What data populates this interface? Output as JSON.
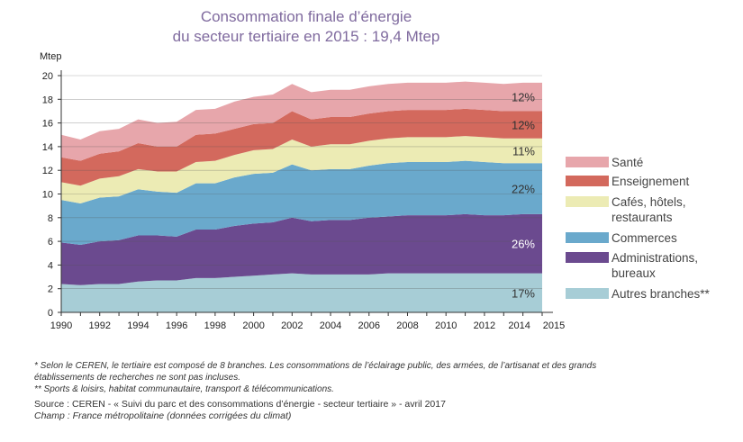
{
  "title_line1": "Consommation finale d’énergie",
  "title_line2": "du secteur tertiaire en 2015 : 19,4 Mtep",
  "chart_data": {
    "type": "area",
    "stacked": true,
    "ylabel": "Mtep",
    "ylim": [
      0,
      20
    ],
    "yticks": [
      0,
      2,
      4,
      6,
      8,
      10,
      12,
      14,
      16,
      18,
      20
    ],
    "xlim": [
      1990,
      2015
    ],
    "xticks": [
      1990,
      1992,
      1994,
      1996,
      1998,
      2000,
      2002,
      2004,
      2006,
      2008,
      2010,
      2012,
      2014,
      2015
    ],
    "grid": "horizontal",
    "x": [
      1990,
      1991,
      1992,
      1993,
      1994,
      1995,
      1996,
      1997,
      1998,
      1999,
      2000,
      2001,
      2002,
      2003,
      2004,
      2005,
      2006,
      2007,
      2008,
      2009,
      2010,
      2011,
      2012,
      2013,
      2014,
      2015
    ],
    "series": [
      {
        "name": "Autres branches**",
        "color": "#a7cdd6",
        "share_label": "17%",
        "values": [
          2.4,
          2.3,
          2.4,
          2.4,
          2.6,
          2.7,
          2.7,
          2.9,
          2.9,
          3.0,
          3.1,
          3.2,
          3.3,
          3.2,
          3.2,
          3.2,
          3.2,
          3.3,
          3.3,
          3.3,
          3.3,
          3.3,
          3.3,
          3.3,
          3.3,
          3.3
        ]
      },
      {
        "name": "Administrations, bureaux",
        "color": "#6b4a8f",
        "share_label": "26%",
        "values": [
          3.5,
          3.4,
          3.6,
          3.7,
          3.9,
          3.8,
          3.7,
          4.1,
          4.1,
          4.3,
          4.4,
          4.4,
          4.7,
          4.5,
          4.6,
          4.6,
          4.8,
          4.8,
          4.9,
          4.9,
          4.9,
          5.0,
          4.9,
          4.9,
          5.0,
          5.0
        ]
      },
      {
        "name": "Commerces",
        "color": "#6aa9cc",
        "share_label": "22%",
        "values": [
          3.6,
          3.5,
          3.7,
          3.7,
          3.9,
          3.7,
          3.7,
          3.9,
          3.9,
          4.1,
          4.2,
          4.2,
          4.5,
          4.3,
          4.3,
          4.3,
          4.4,
          4.5,
          4.5,
          4.5,
          4.5,
          4.5,
          4.5,
          4.4,
          4.3,
          4.3
        ]
      },
      {
        "name": "Cafés, hôtels, restaurants",
        "color": "#ecebb4",
        "share_label": "11%",
        "values": [
          1.5,
          1.5,
          1.6,
          1.7,
          1.7,
          1.7,
          1.8,
          1.8,
          1.9,
          1.9,
          2.0,
          2.0,
          2.1,
          2.0,
          2.1,
          2.1,
          2.1,
          2.1,
          2.1,
          2.1,
          2.1,
          2.1,
          2.1,
          2.1,
          2.1,
          2.1
        ]
      },
      {
        "name": "Enseignement",
        "color": "#d3695d",
        "share_label": "12%",
        "values": [
          2.1,
          2.1,
          2.1,
          2.1,
          2.2,
          2.1,
          2.1,
          2.3,
          2.3,
          2.2,
          2.2,
          2.2,
          2.4,
          2.3,
          2.3,
          2.3,
          2.3,
          2.3,
          2.3,
          2.3,
          2.3,
          2.3,
          2.3,
          2.3,
          2.3,
          2.3
        ]
      },
      {
        "name": "Santé",
        "color": "#e7a6ab",
        "share_label": "12%",
        "values": [
          1.9,
          1.8,
          1.9,
          1.9,
          2.0,
          2.0,
          2.1,
          2.1,
          2.1,
          2.3,
          2.3,
          2.4,
          2.3,
          2.3,
          2.3,
          2.3,
          2.3,
          2.3,
          2.3,
          2.3,
          2.3,
          2.3,
          2.3,
          2.3,
          2.4,
          2.4
        ]
      }
    ],
    "legend_labels": [
      {
        "series": "Santé",
        "lines": [
          "Santé"
        ]
      },
      {
        "series": "Enseignement",
        "lines": [
          "Enseignement"
        ]
      },
      {
        "series": "Cafés, hôtels, restaurants",
        "lines": [
          "Cafés, hôtels,",
          "restaurants"
        ]
      },
      {
        "series": "Commerces",
        "lines": [
          "Commerces"
        ]
      },
      {
        "series": "Administrations, bureaux",
        "lines": [
          "Administrations,",
          "bureaux"
        ]
      },
      {
        "series": "Autres branches**",
        "lines": [
          "Autres branches**"
        ]
      }
    ]
  },
  "footnote1_line1": "* Selon le CEREN, le tertiaire est composé de 8 branches. Les consommations de l’éclairage public, des armées, de l’artisanat et des grands",
  "footnote1_line2": "établissements de recherches ne sont pas incluses.",
  "footnote2": "** Sports & loisirs, habitat communautaire, transport & télécommunications.",
  "source": "Source : CEREN - « Suivi du parc et des consommations d’énergie - secteur tertiaire » - avril 2017",
  "champ": "Champ : France métropolitaine (données corrigées du climat)"
}
